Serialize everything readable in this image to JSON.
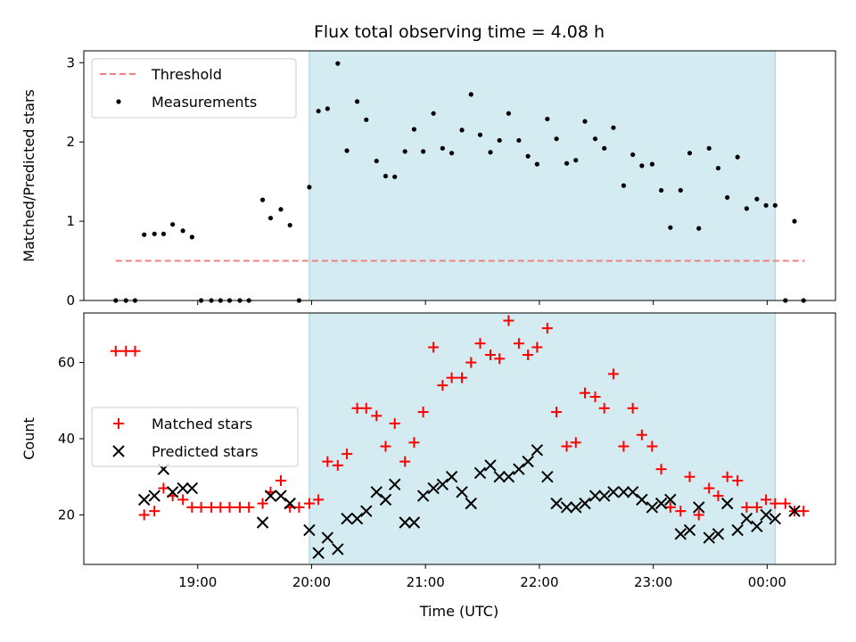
{
  "figure": {
    "title": "Flux total observing time = 4.08 h",
    "xlabel": "Time (UTC)",
    "x_ticks": [
      "19:00",
      "20:00",
      "21:00",
      "22:00",
      "23:00",
      "00:00"
    ]
  },
  "chart_data": [
    {
      "type": "scatter",
      "title": "Flux total observing time = 4.08 h",
      "ylabel": "Matched/Predicted stars",
      "xlabel": "",
      "x_unit": "hours UTC",
      "xlim": [
        18.0,
        24.6
      ],
      "ylim": [
        0,
        3.15
      ],
      "y_ticks": [
        0,
        1,
        2,
        3
      ],
      "observing_window": [
        19.98,
        24.07
      ],
      "legend_position": "upper-left",
      "grid": false,
      "series": [
        {
          "name": "Threshold",
          "kind": "dashed-line",
          "color": "#f08080",
          "x": [
            18.28,
            24.33
          ],
          "y": [
            0.5,
            0.5
          ]
        },
        {
          "name": "Measurements",
          "kind": "dot",
          "color": "#000000",
          "x": [
            18.28,
            18.37,
            18.45,
            18.53,
            18.62,
            18.7,
            18.78,
            18.87,
            18.95,
            19.03,
            19.12,
            19.2,
            19.28,
            19.37,
            19.45,
            19.57,
            19.64,
            19.73,
            19.81,
            19.89,
            19.98,
            20.06,
            20.14,
            20.23,
            20.31,
            20.4,
            20.48,
            20.57,
            20.65,
            20.73,
            20.82,
            20.9,
            20.98,
            21.07,
            21.15,
            21.23,
            21.32,
            21.4,
            21.48,
            21.57,
            21.65,
            21.73,
            21.82,
            21.9,
            21.98,
            22.07,
            22.15,
            22.24,
            22.32,
            22.4,
            22.49,
            22.57,
            22.65,
            22.74,
            22.82,
            22.9,
            22.99,
            23.07,
            23.15,
            23.24,
            23.32,
            23.4,
            23.49,
            23.57,
            23.65,
            23.74,
            23.82,
            23.91,
            23.99,
            24.07,
            24.16,
            24.24,
            24.32
          ],
          "y": [
            0,
            0,
            0,
            0.83,
            0.84,
            0.84,
            0.96,
            0.88,
            0.8,
            0,
            0,
            0,
            0,
            0,
            0,
            1.27,
            1.04,
            1.15,
            0.95,
            0,
            1.43,
            2.39,
            2.42,
            2.99,
            1.89,
            2.51,
            2.28,
            1.76,
            1.57,
            1.56,
            1.88,
            2.16,
            1.88,
            2.36,
            1.92,
            1.86,
            2.15,
            2.6,
            2.09,
            1.87,
            2.02,
            2.36,
            2.02,
            1.82,
            1.72,
            2.29,
            2.04,
            1.73,
            1.77,
            2.26,
            2.04,
            1.92,
            2.18,
            1.45,
            1.84,
            1.7,
            1.72,
            1.39,
            0.92,
            1.39,
            1.86,
            0.91,
            1.92,
            1.67,
            1.3,
            1.81,
            1.16,
            1.28,
            1.2,
            1.2,
            0,
            1.0,
            0
          ]
        }
      ]
    },
    {
      "type": "scatter",
      "ylabel": "Count",
      "xlabel": "Time (UTC)",
      "x_unit": "hours UTC",
      "xlim": [
        18.0,
        24.6
      ],
      "ylim": [
        7,
        73
      ],
      "y_ticks": [
        20,
        40,
        60
      ],
      "observing_window": [
        19.98,
        24.07
      ],
      "legend_position": "center-left",
      "grid": false,
      "series": [
        {
          "name": "Matched stars",
          "kind": "plus",
          "color": "#ff0000",
          "x": [
            18.28,
            18.37,
            18.45,
            18.53,
            18.62,
            18.7,
            18.78,
            18.87,
            18.95,
            19.03,
            19.12,
            19.2,
            19.28,
            19.37,
            19.45,
            19.57,
            19.64,
            19.73,
            19.81,
            19.89,
            19.98,
            20.06,
            20.14,
            20.23,
            20.31,
            20.4,
            20.48,
            20.57,
            20.65,
            20.73,
            20.82,
            20.9,
            20.98,
            21.07,
            21.15,
            21.23,
            21.32,
            21.4,
            21.48,
            21.57,
            21.65,
            21.73,
            21.82,
            21.9,
            21.98,
            22.07,
            22.15,
            22.24,
            22.32,
            22.4,
            22.49,
            22.57,
            22.65,
            22.74,
            22.82,
            22.9,
            22.99,
            23.07,
            23.15,
            23.24,
            23.32,
            23.4,
            23.49,
            23.57,
            23.65,
            23.74,
            23.82,
            23.91,
            23.99,
            24.07,
            24.16,
            24.24,
            24.32
          ],
          "y": [
            63,
            63,
            63,
            20,
            21,
            27,
            25,
            24,
            22,
            22,
            22,
            22,
            22,
            22,
            22,
            23,
            26,
            29,
            22,
            22,
            23,
            24,
            34,
            33,
            36,
            48,
            48,
            46,
            38,
            44,
            34,
            39,
            47,
            64,
            54,
            56,
            56,
            60,
            65,
            62,
            61,
            71,
            65,
            62,
            64,
            69,
            47,
            38,
            39,
            52,
            51,
            48,
            57,
            38,
            48,
            41,
            38,
            32,
            22,
            21,
            30,
            20,
            27,
            25,
            30,
            29,
            22,
            22,
            24,
            23,
            23,
            21,
            21
          ]
        },
        {
          "name": "Predicted stars",
          "kind": "cross",
          "color": "#000000",
          "x": [
            18.53,
            18.62,
            18.7,
            18.78,
            18.87,
            18.95,
            19.57,
            19.64,
            19.73,
            19.81,
            19.98,
            20.06,
            20.14,
            20.23,
            20.31,
            20.4,
            20.48,
            20.57,
            20.65,
            20.73,
            20.82,
            20.9,
            20.98,
            21.07,
            21.15,
            21.23,
            21.32,
            21.4,
            21.48,
            21.57,
            21.65,
            21.73,
            21.82,
            21.9,
            21.98,
            22.07,
            22.15,
            22.24,
            22.32,
            22.4,
            22.49,
            22.57,
            22.65,
            22.74,
            22.82,
            22.9,
            22.99,
            23.07,
            23.15,
            23.24,
            23.32,
            23.4,
            23.49,
            23.57,
            23.65,
            23.74,
            23.82,
            23.91,
            23.99,
            24.07,
            24.24
          ],
          "y": [
            24,
            25,
            32,
            26,
            27,
            27,
            18,
            25,
            25,
            23,
            16,
            10,
            14,
            11,
            19,
            19,
            21,
            26,
            24,
            28,
            18,
            18,
            25,
            27,
            28,
            30,
            26,
            23,
            31,
            33,
            30,
            30,
            32,
            34,
            37,
            30,
            23,
            22,
            22,
            23,
            25,
            25,
            26,
            26,
            26,
            24,
            22,
            23,
            24,
            15,
            16,
            22,
            14,
            15,
            23,
            16,
            19,
            17,
            20,
            19,
            21
          ]
        }
      ]
    }
  ]
}
